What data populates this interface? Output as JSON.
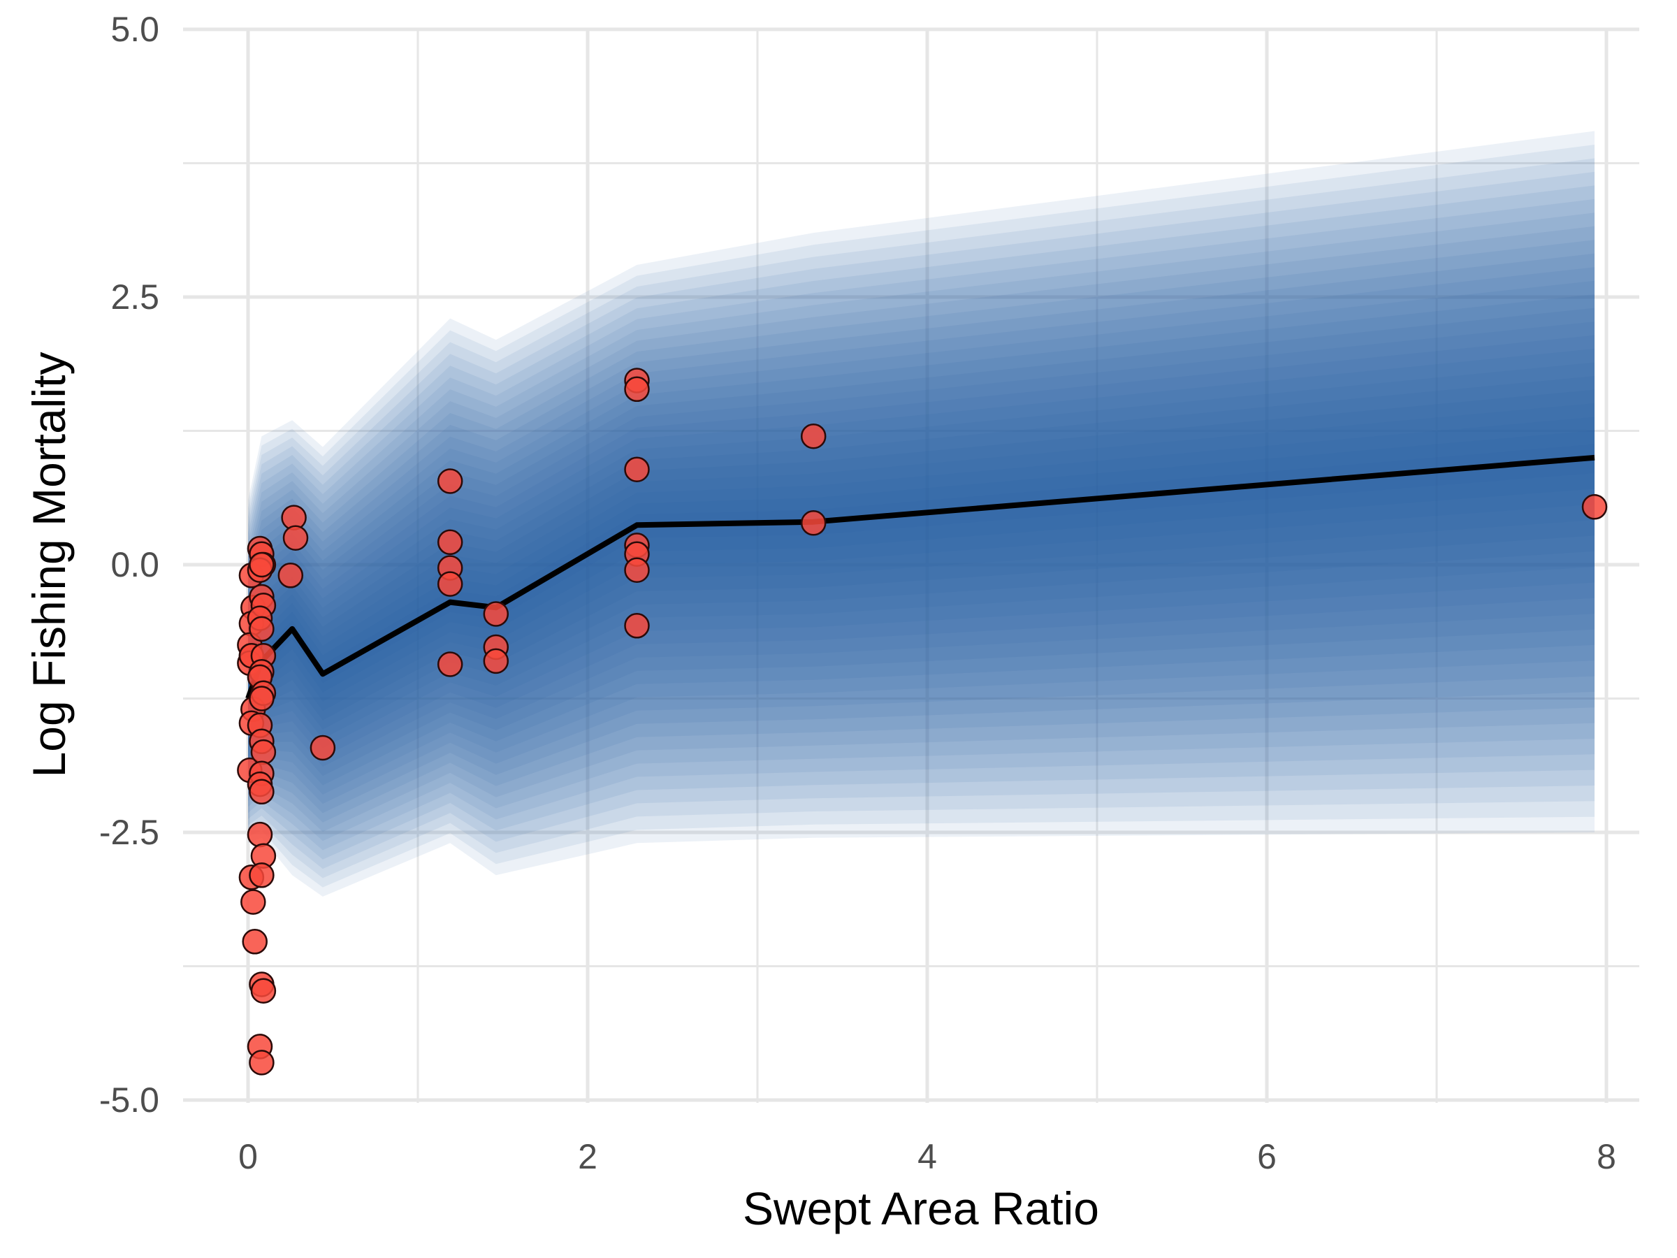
{
  "chart_data": {
    "type": "scatter",
    "xlabel": "Swept Area Ratio",
    "ylabel": "Log Fishing Mortality",
    "xlim": [
      -0.37,
      8.15
    ],
    "ylim": [
      -5.25,
      5.0
    ],
    "x_ticks": [
      0,
      2,
      4,
      6,
      8
    ],
    "x_tick_labels": [
      "0",
      "2",
      "4",
      "6",
      "8"
    ],
    "x_minor_ticks": [
      1,
      3,
      5,
      7
    ],
    "y_ticks": [
      5.0,
      2.5,
      0.0,
      -2.5,
      -5.0
    ],
    "y_tick_labels": [
      "5.0",
      "2.5",
      "0.0",
      "-2.5",
      "-5.0"
    ],
    "y_minor_ticks": [
      3.75,
      1.25,
      -1.25,
      -3.75
    ],
    "grid": true,
    "legend": "none",
    "colors": {
      "band": "#1f5aa8",
      "line": "#000000",
      "point_fill": "#f8493b",
      "point_stroke": "#2b0a08",
      "grid": "#e6e6e6"
    },
    "fit_line": {
      "x": [
        0.0,
        0.08,
        0.26,
        0.44,
        1.19,
        1.46,
        2.29,
        3.33,
        7.93
      ],
      "y": [
        -1.25,
        -0.9,
        -0.6,
        -1.02,
        -0.35,
        -0.4,
        0.37,
        0.4,
        1.0
      ]
    },
    "uncertainty_band": {
      "x": [
        0.0,
        0.08,
        0.26,
        0.44,
        1.19,
        1.46,
        2.29,
        3.33,
        7.93
      ],
      "lower": [
        -2.6,
        -2.55,
        -2.9,
        -3.1,
        -2.6,
        -2.9,
        -2.6,
        -2.55,
        -2.5
      ],
      "upper": [
        0.6,
        1.2,
        1.35,
        1.1,
        2.3,
        2.1,
        2.8,
        3.1,
        4.05
      ]
    },
    "points": {
      "x": [
        0.02,
        0.03,
        0.02,
        0.01,
        0.02,
        0.01,
        0.03,
        0.02,
        0.01,
        0.02,
        0.03,
        0.04,
        0.02,
        0.07,
        0.08,
        0.09,
        0.07,
        0.08,
        0.09,
        0.07,
        0.08,
        0.09,
        0.08,
        0.07,
        0.09,
        0.08,
        0.07,
        0.08,
        0.09,
        0.08,
        0.07,
        0.08,
        0.07,
        0.09,
        0.08,
        0.08,
        0.09,
        0.07,
        0.08,
        0.08,
        0.27,
        0.28,
        0.25,
        0.44,
        1.19,
        1.19,
        1.19,
        1.19,
        1.19,
        1.46,
        1.46,
        1.46,
        2.29,
        2.29,
        2.29,
        2.29,
        2.29,
        2.29,
        2.29,
        3.33,
        3.33,
        7.93
      ],
      "y": [
        -0.1,
        -0.4,
        -0.55,
        -0.75,
        -0.85,
        -0.92,
        -1.35,
        -1.48,
        -1.92,
        -2.92,
        -3.15,
        -3.52,
        -0.85,
        0.15,
        0.1,
        0.0,
        -0.05,
        -0.3,
        -0.38,
        -0.5,
        -0.6,
        -0.85,
        -1.0,
        -1.05,
        -1.2,
        -1.25,
        -1.5,
        -1.65,
        -1.75,
        -1.95,
        -2.05,
        -2.12,
        -2.52,
        -2.72,
        -2.9,
        -3.92,
        -3.98,
        -4.5,
        -4.65,
        0.0,
        0.44,
        0.25,
        -0.1,
        -1.71,
        0.78,
        0.21,
        -0.03,
        -0.18,
        -0.93,
        -0.46,
        -0.77,
        -0.9,
        1.72,
        1.64,
        0.89,
        0.18,
        0.1,
        -0.05,
        -0.57,
        1.2,
        0.39,
        0.54
      ]
    }
  }
}
